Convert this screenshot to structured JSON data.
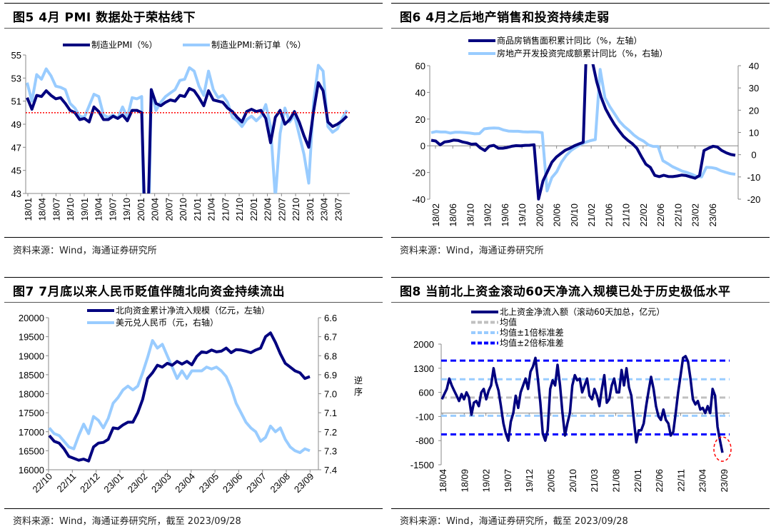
{
  "colors": {
    "dark": "#00007f",
    "light": "#99ccff",
    "red": "#ff0000",
    "grey": "#c0c0c0",
    "blue": "#0000ff"
  },
  "panels": [
    {
      "title": "图5 4月 PMI 数据处于荣枯线下",
      "source": "资料来源：Wind，海通证券研究所"
    },
    {
      "title": "图6 4月之后地产销售和投资持续走弱",
      "source": "资料来源：Wind，海通证券研究所"
    },
    {
      "title": "图7 7月底以来人民币贬值伴随北向资金持续流出",
      "source": "资料来源：Wind，海通证券研究所，截至 2023/09/28"
    },
    {
      "title": "图8 当前北上资金滚动60天净流入规模已处于历史极低水平",
      "source": "资料来源：Wind，海通证券研究所，截至 2023/09/28"
    }
  ],
  "chart_data": [
    {
      "type": "line",
      "title": "4月 PMI 数据处于荣枯线下",
      "ylim": [
        43,
        55
      ],
      "yticks": [
        "55",
        "53",
        "51",
        "49",
        "47",
        "45",
        "43"
      ],
      "xticks": [
        "18/01",
        "18/04",
        "18/07",
        "18/10",
        "19/01",
        "19/04",
        "19/07",
        "19/10",
        "20/01",
        "20/04",
        "20/07",
        "20/10",
        "21/01",
        "21/04",
        "21/07",
        "21/10",
        "22/01",
        "22/04",
        "22/07",
        "22/10",
        "23/01",
        "23/04",
        "23/07"
      ],
      "reference_line": {
        "value": 50,
        "style": "red dotted"
      },
      "legend": "top",
      "series": [
        {
          "name": "制造业PMI（%）",
          "color": "dark",
          "values": [
            51.3,
            50.3,
            51.5,
            51.4,
            51.9,
            51.5,
            51.2,
            51.3,
            50.8,
            50.2,
            50.0,
            49.4,
            49.5,
            49.2,
            50.5,
            50.1,
            49.4,
            49.4,
            49.7,
            49.5,
            49.8,
            49.3,
            50.2,
            50.2,
            50.0,
            35.7,
            52.0,
            50.8,
            50.6,
            50.9,
            51.1,
            51.0,
            51.5,
            51.4,
            52.1,
            51.9,
            51.3,
            50.6,
            51.9,
            51.1,
            51.0,
            50.9,
            50.4,
            50.1,
            49.6,
            49.2,
            50.1,
            50.3,
            50.1,
            50.2,
            49.5,
            47.4,
            49.6,
            50.2,
            49.0,
            49.4,
            50.1,
            49.2,
            48.0,
            47.0,
            50.1,
            52.6,
            51.9,
            49.2,
            48.8,
            49.0,
            49.3,
            49.7
          ]
        },
        {
          "name": "制造业PMI:新订单（%）",
          "color": "light",
          "values": [
            52.6,
            51.0,
            53.3,
            52.9,
            53.8,
            53.2,
            52.3,
            52.2,
            52.0,
            50.8,
            50.4,
            49.7,
            49.6,
            50.6,
            51.6,
            51.4,
            49.8,
            49.6,
            49.8,
            49.5,
            50.5,
            49.6,
            51.3,
            51.2,
            51.4,
            29.3,
            52.0,
            50.2,
            50.9,
            51.4,
            51.7,
            52.0,
            52.8,
            52.9,
            53.9,
            53.6,
            52.3,
            51.5,
            53.6,
            52.0,
            51.3,
            51.5,
            50.9,
            49.6,
            49.3,
            48.8,
            49.4,
            49.7,
            49.3,
            49.7,
            50.7,
            48.8,
            42.6,
            48.2,
            50.4,
            49.2,
            49.8,
            48.1,
            46.4,
            43.9,
            50.9,
            54.1,
            53.6,
            48.8,
            48.3,
            48.6,
            49.5,
            50.2
          ]
        }
      ]
    },
    {
      "type": "line",
      "title": "4月之后地产销售和投资持续走弱",
      "ylim_left": [
        -40,
        60
      ],
      "ylim_right": [
        -20,
        40
      ],
      "yticks_left": [
        "60",
        "40",
        "20",
        "0",
        "-20",
        "-40"
      ],
      "yticks_right": [
        "40",
        "30",
        "20",
        "10",
        "0",
        "-10",
        "-20"
      ],
      "xticks": [
        "18/02",
        "18/06",
        "18/10",
        "19/02",
        "19/06",
        "19/10",
        "20/02",
        "20/06",
        "20/10",
        "21/02",
        "21/06",
        "21/10",
        "22/02",
        "22/06",
        "22/10",
        "23/02",
        "23/06"
      ],
      "legend": "top",
      "series": [
        {
          "name": "商品房销售面积累计同比（%，左轴）",
          "color": "dark",
          "axis": "left",
          "values": [
            4.1,
            3.6,
            0.7,
            2.9,
            3.3,
            4.2,
            4.0,
            2.9,
            2.2,
            1.2,
            1.4,
            -1.6,
            -3.6,
            -0.3,
            0.3,
            -1.8,
            -1.8,
            -1.3,
            -0.4,
            0.1,
            0.0,
            0.3,
            0.4,
            0.8,
            -39.9,
            -26.3,
            -19.3,
            -12.3,
            -8.4,
            -5.8,
            -3.3,
            -1.8,
            0.0,
            1.3,
            2.6,
            104.9,
            63.8,
            48.1,
            36.3,
            27.7,
            21.5,
            15.9,
            11.3,
            7.0,
            4.0,
            1.5,
            -1.9,
            -8.0,
            -13.8,
            -16.2,
            -22.2,
            -23.1,
            -22.1,
            -23.0,
            -23.1,
            -22.6,
            -22.0,
            -22.3,
            -23.3,
            -24.3,
            -22.3,
            -3.6,
            -1.8,
            -0.4,
            -0.9,
            -3.6,
            -5.3,
            -6.5,
            -7.1
          ]
        },
        {
          "name": "房地产开发投资完成额累计同比（%，右轴）",
          "color": "light",
          "axis": "right",
          "values": [
            9.9,
            10.4,
            10.2,
            10.2,
            9.7,
            10.1,
            10.1,
            9.9,
            9.7,
            9.4,
            9.5,
            11.6,
            11.9,
            12.0,
            11.9,
            11.1,
            10.6,
            10.5,
            10.5,
            10.3,
            10.2,
            10.3,
            10.2,
            9.9,
            -16.3,
            -10.3,
            -7.7,
            -3.3,
            -0.3,
            1.9,
            3.4,
            4.6,
            5.6,
            6.3,
            6.8,
            38.3,
            25.6,
            21.6,
            18.3,
            15.0,
            12.7,
            10.9,
            8.8,
            7.2,
            6.1,
            4.4,
            3.7,
            3.7,
            -2.7,
            -4.0,
            -5.4,
            -6.4,
            -7.4,
            -8.0,
            -8.8,
            -9.8,
            -10.0,
            -5.7,
            -5.8,
            -6.2,
            -7.2,
            -7.9,
            -8.5,
            -8.8
          ]
        }
      ]
    },
    {
      "type": "line",
      "title": "7月底以来人民币贬值伴随北向资金持续流出",
      "ylim_left": [
        16000,
        20000
      ],
      "ylim_right": [
        7.4,
        6.6
      ],
      "right_axis_inverted": true,
      "right_axis_note": "逆序",
      "yticks_left": [
        "20000",
        "19500",
        "19000",
        "18500",
        "18000",
        "17500",
        "17000",
        "16500",
        "16000"
      ],
      "yticks_right": [
        "6.6",
        "6.7",
        "6.8",
        "6.9",
        "7.0",
        "7.1",
        "7.2",
        "7.3",
        "7.4"
      ],
      "xticks": [
        "22/10",
        "22/11",
        "22/12",
        "23/01",
        "23/02",
        "23/03",
        "23/04",
        "23/05",
        "23/06",
        "23/07",
        "23/08",
        "23/09"
      ],
      "legend": "top",
      "series": [
        {
          "name": "北向资金累计净流入规模（亿元，左轴）",
          "color": "dark",
          "axis": "left",
          "values": [
            16900,
            16750,
            16700,
            16550,
            16350,
            16300,
            16250,
            16280,
            16230,
            16600,
            16700,
            16720,
            16800,
            17100,
            17080,
            17180,
            17250,
            17250,
            17500,
            17850,
            18400,
            18550,
            18750,
            18700,
            18800,
            18750,
            18850,
            18780,
            18850,
            18760,
            18980,
            19100,
            19080,
            19150,
            19100,
            19120,
            19200,
            19080,
            19160,
            19150,
            19120,
            19080,
            19150,
            19200,
            19500,
            19600,
            19350,
            19050,
            18800,
            18700,
            18600,
            18550,
            18400,
            18450
          ]
        },
        {
          "name": "美元兑人民币（元，右轴）",
          "color": "light",
          "axis": "right",
          "values": [
            7.18,
            7.21,
            7.22,
            7.25,
            7.28,
            7.29,
            7.22,
            7.16,
            7.21,
            7.12,
            7.14,
            7.18,
            7.13,
            7.05,
            7.02,
            6.98,
            6.96,
            6.98,
            6.96,
            6.89,
            6.81,
            6.72,
            6.76,
            6.74,
            6.8,
            6.86,
            6.92,
            6.88,
            6.92,
            6.88,
            6.88,
            6.88,
            6.86,
            6.87,
            6.86,
            6.88,
            6.91,
            6.97,
            7.05,
            7.1,
            7.15,
            7.18,
            7.2,
            7.25,
            7.23,
            7.17,
            7.2,
            7.18,
            7.24,
            7.28,
            7.3,
            7.31,
            7.29,
            7.3
          ]
        }
      ]
    },
    {
      "type": "line",
      "title": "当前北上资金滚动60天净流入规模已处于历史极低水平",
      "ylim": [
        -1500,
        2000
      ],
      "yticks": [
        "2000",
        "1300",
        "600",
        "-100",
        "-800",
        "-1500"
      ],
      "xticks": [
        "18/04",
        "18/09",
        "19/02",
        "19/07",
        "19/12",
        "20/05",
        "20/10",
        "21/03",
        "21/08",
        "22/01",
        "22/06",
        "22/11",
        "23/04",
        "23/09"
      ],
      "legend": "top",
      "reference_lines": [
        {
          "name": "均值",
          "value": 450,
          "color": "grey",
          "style": "dashed"
        },
        {
          "name": "均值±1倍标准差",
          "values": [
            980,
            -80
          ],
          "color": "light",
          "style": "dashed"
        },
        {
          "name": "均值±2倍标准差",
          "values": [
            1520,
            -620
          ],
          "color": "blue",
          "style": "dashed"
        }
      ],
      "annotation": "red dashed ellipse around latest value",
      "series": [
        {
          "name": "北上资金净流入额（滚动60天加总，亿元）",
          "color": "dark",
          "values": [
            400,
            550,
            700,
            1000,
            800,
            650,
            500,
            350,
            550,
            400,
            600,
            450,
            -50,
            300,
            350,
            200,
            600,
            700,
            400,
            650,
            800,
            1300,
            900,
            650,
            200,
            -300,
            -600,
            -800,
            -250,
            0,
            500,
            150,
            600,
            800,
            1000,
            700,
            1200,
            1350,
            1600,
            1000,
            300,
            -600,
            -800,
            -500,
            700,
            950,
            800,
            1400,
            800,
            0,
            -650,
            -300,
            0,
            800,
            1100,
            950,
            1000,
            600,
            800,
            1000,
            500,
            400,
            700,
            500,
            200,
            700,
            1100,
            300,
            400,
            800,
            1000,
            600,
            600,
            1250,
            800,
            1300,
            750,
            500,
            -200,
            -850,
            -500,
            -500,
            -300,
            200,
            650,
            1050,
            700,
            200,
            -100,
            -200,
            100,
            -200,
            -300,
            -650,
            -550,
            0,
            600,
            1100,
            1600,
            1650,
            1500,
            1000,
            400,
            250,
            350,
            100,
            150,
            0,
            200,
            0,
            700,
            500,
            -400,
            -800,
            -1150
          ]
        }
      ]
    }
  ]
}
